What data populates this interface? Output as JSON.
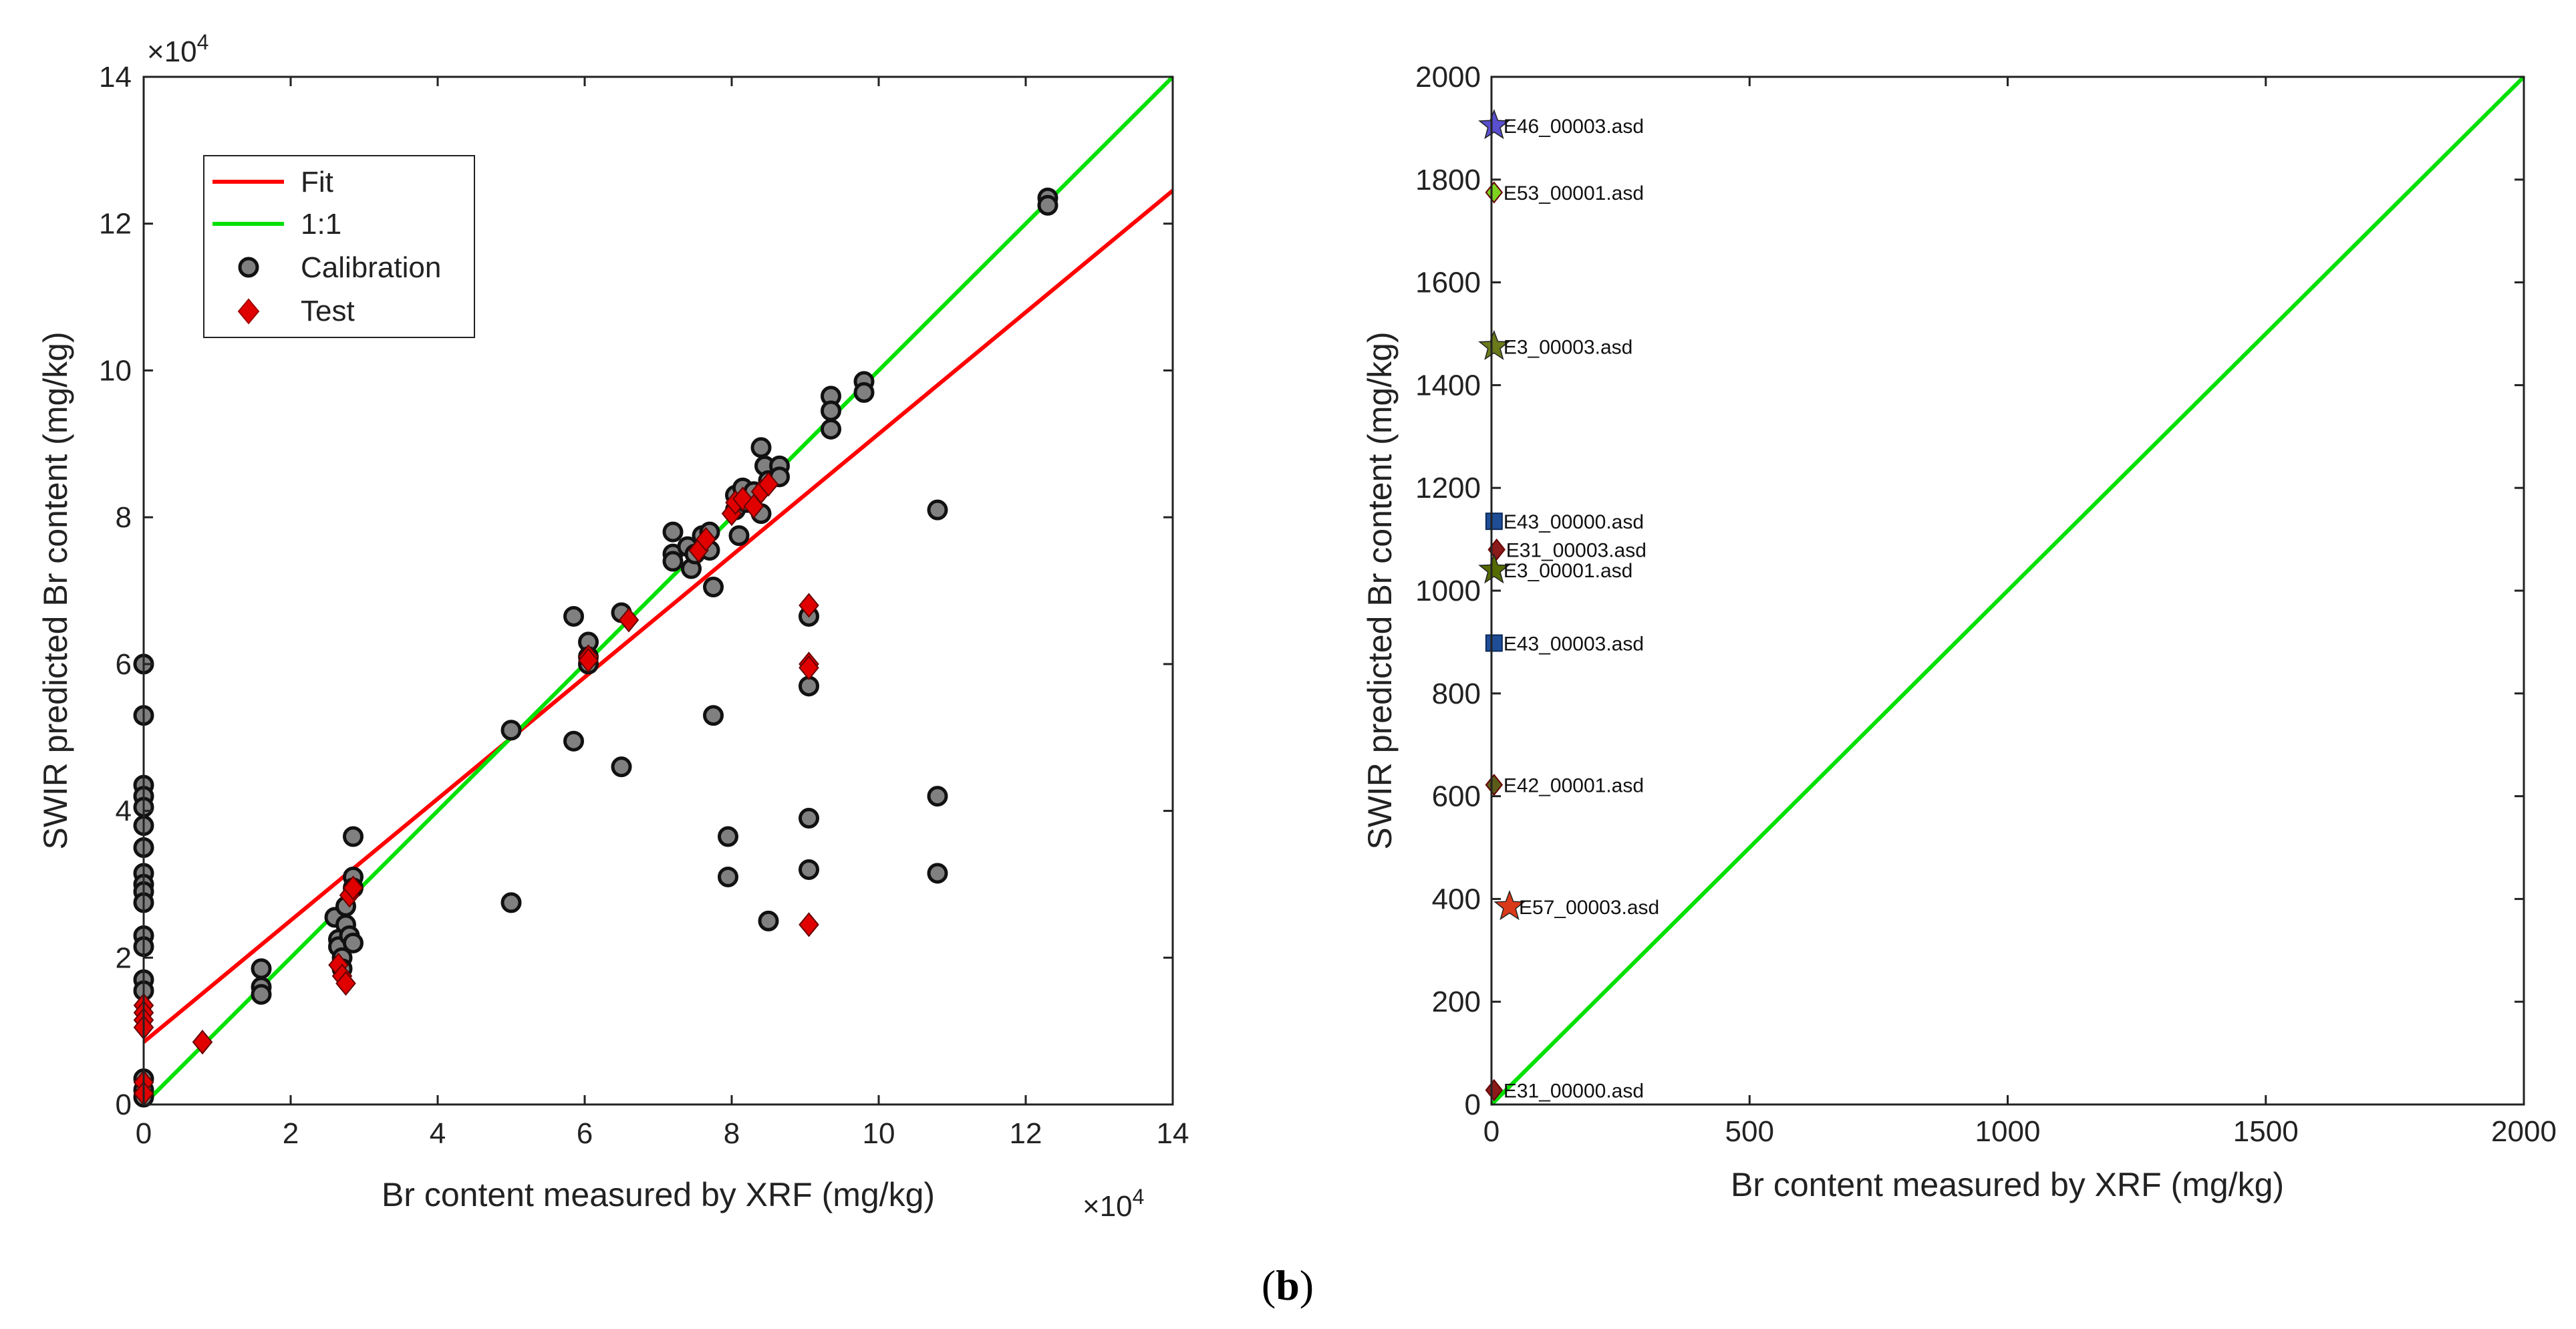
{
  "caption": {
    "open": "(",
    "letter": "b",
    "close": ")"
  },
  "chart_data": [
    {
      "type": "scatter",
      "xlabel": "Br content measured by XRF (mg/kg)",
      "ylabel": "SWIR predicted Br content (mg/kg)",
      "x_ticks": [
        "0",
        "2",
        "4",
        "6",
        "8",
        "10",
        "12",
        "14"
      ],
      "y_ticks": [
        "0",
        "2",
        "4",
        "6",
        "8",
        "10",
        "12",
        "14"
      ],
      "x_multiplier": "×10",
      "y_multiplier": "×10",
      "multiplier_exponent": "4",
      "xlim": [
        0,
        14
      ],
      "ylim": [
        0,
        14
      ],
      "legend": {
        "position": "top-left",
        "entries": [
          {
            "label": "Fit",
            "color": "#ff0000",
            "kind": "line"
          },
          {
            "label": "1:1",
            "color": "#00e000",
            "kind": "line"
          },
          {
            "label": "Calibration",
            "color": "#808080",
            "kind": "circle"
          },
          {
            "label": "Test",
            "color": "#e00000",
            "kind": "diamond"
          }
        ]
      },
      "lines": [
        {
          "name": "Fit",
          "color": "#ff0000",
          "x": [
            0,
            14
          ],
          "y": [
            0.85,
            12.45
          ]
        },
        {
          "name": "1:1",
          "color": "#00e000",
          "x": [
            0,
            14
          ],
          "y": [
            0,
            14
          ]
        }
      ],
      "series": [
        {
          "name": "Calibration",
          "marker": "circle",
          "color": "#808080",
          "points": [
            [
              0,
              6.0
            ],
            [
              0,
              5.3
            ],
            [
              0,
              4.35
            ],
            [
              0,
              4.2
            ],
            [
              0,
              4.05
            ],
            [
              0,
              3.8
            ],
            [
              0,
              3.5
            ],
            [
              0,
              3.15
            ],
            [
              0,
              3.0
            ],
            [
              0,
              2.9
            ],
            [
              0,
              2.75
            ],
            [
              0,
              2.3
            ],
            [
              0,
              2.15
            ],
            [
              0,
              1.7
            ],
            [
              0,
              1.55
            ],
            [
              0,
              0.35
            ],
            [
              0,
              0.2
            ],
            [
              0,
              0.1
            ],
            [
              1.6,
              1.85
            ],
            [
              1.6,
              1.6
            ],
            [
              1.6,
              1.5
            ],
            [
              2.6,
              2.55
            ],
            [
              2.65,
              2.25
            ],
            [
              2.65,
              2.15
            ],
            [
              2.7,
              2.0
            ],
            [
              2.7,
              1.85
            ],
            [
              2.75,
              2.7
            ],
            [
              2.75,
              2.45
            ],
            [
              2.8,
              2.3
            ],
            [
              2.85,
              3.65
            ],
            [
              2.85,
              3.1
            ],
            [
              2.85,
              2.95
            ],
            [
              2.85,
              2.2
            ],
            [
              5.0,
              5.1
            ],
            [
              5.0,
              2.75
            ],
            [
              5.85,
              6.65
            ],
            [
              5.85,
              4.95
            ],
            [
              6.05,
              6.3
            ],
            [
              6.05,
              6.1
            ],
            [
              6.05,
              6.0
            ],
            [
              6.5,
              6.7
            ],
            [
              6.5,
              4.6
            ],
            [
              7.2,
              7.8
            ],
            [
              7.2,
              7.5
            ],
            [
              7.2,
              7.4
            ],
            [
              7.4,
              7.6
            ],
            [
              7.45,
              7.3
            ],
            [
              7.5,
              7.5
            ],
            [
              7.6,
              7.75
            ],
            [
              7.7,
              7.8
            ],
            [
              7.7,
              7.55
            ],
            [
              7.75,
              7.05
            ],
            [
              7.75,
              5.3
            ],
            [
              7.95,
              3.65
            ],
            [
              7.95,
              3.1
            ],
            [
              8.05,
              8.3
            ],
            [
              8.05,
              8.1
            ],
            [
              8.1,
              7.75
            ],
            [
              8.15,
              8.4
            ],
            [
              8.2,
              8.2
            ],
            [
              8.3,
              8.35
            ],
            [
              8.4,
              8.95
            ],
            [
              8.4,
              8.05
            ],
            [
              8.45,
              8.7
            ],
            [
              8.5,
              8.5
            ],
            [
              8.5,
              2.5
            ],
            [
              8.65,
              8.7
            ],
            [
              8.65,
              8.55
            ],
            [
              9.05,
              6.65
            ],
            [
              9.05,
              5.7
            ],
            [
              9.05,
              3.9
            ],
            [
              9.05,
              3.2
            ],
            [
              9.35,
              9.65
            ],
            [
              9.35,
              9.45
            ],
            [
              9.35,
              9.2
            ],
            [
              9.8,
              9.85
            ],
            [
              9.8,
              9.7
            ],
            [
              10.8,
              8.1
            ],
            [
              10.8,
              4.2
            ],
            [
              10.8,
              3.15
            ],
            [
              12.3,
              12.35
            ],
            [
              12.3,
              12.25
            ]
          ]
        },
        {
          "name": "Test",
          "marker": "diamond",
          "color": "#e00000",
          "points": [
            [
              0,
              1.35
            ],
            [
              0,
              1.25
            ],
            [
              0,
              1.15
            ],
            [
              0,
              1.05
            ],
            [
              0,
              0.3
            ],
            [
              0,
              0.15
            ],
            [
              0.8,
              0.85
            ],
            [
              2.65,
              1.9
            ],
            [
              2.7,
              1.75
            ],
            [
              2.75,
              1.65
            ],
            [
              2.8,
              2.85
            ],
            [
              2.85,
              2.95
            ],
            [
              6.05,
              6.1
            ],
            [
              6.05,
              6.05
            ],
            [
              6.6,
              6.6
            ],
            [
              7.55,
              7.55
            ],
            [
              7.65,
              7.7
            ],
            [
              8.0,
              8.05
            ],
            [
              8.05,
              8.2
            ],
            [
              8.15,
              8.25
            ],
            [
              8.3,
              8.15
            ],
            [
              8.4,
              8.35
            ],
            [
              8.5,
              8.45
            ],
            [
              9.05,
              6.8
            ],
            [
              9.05,
              6.0
            ],
            [
              9.05,
              5.95
            ],
            [
              9.05,
              2.45
            ]
          ]
        }
      ]
    },
    {
      "type": "scatter",
      "xlabel": "Br content measured by XRF (mg/kg)",
      "ylabel": "SWIR predicted Br content (mg/kg)",
      "x_ticks": [
        "0",
        "500",
        "1000",
        "1500",
        "2000"
      ],
      "y_ticks": [
        "0",
        "200",
        "400",
        "600",
        "800",
        "1000",
        "1200",
        "1400",
        "1600",
        "1800",
        "2000"
      ],
      "xlim": [
        0,
        2000
      ],
      "ylim": [
        0,
        2000
      ],
      "lines": [
        {
          "name": "1:1",
          "color": "#00e000",
          "x": [
            0,
            2000
          ],
          "y": [
            0,
            2000
          ]
        }
      ],
      "points": [
        {
          "label": "E46_00003.asd",
          "x": 5,
          "y": 1905,
          "marker": "star",
          "color": "#5a4fcf"
        },
        {
          "label": "E53_00001.asd",
          "x": 5,
          "y": 1775,
          "marker": "diamond",
          "color": "#7ed321"
        },
        {
          "label": "E3_00003.asd",
          "x": 5,
          "y": 1475,
          "marker": "star",
          "color": "#6b7a1a"
        },
        {
          "label": "E43_00000.asd",
          "x": 5,
          "y": 1135,
          "marker": "square",
          "color": "#1f4e96"
        },
        {
          "label": "E31_00003.asd",
          "x": 10,
          "y": 1080,
          "marker": "diamond",
          "color": "#8b1a1a"
        },
        {
          "label": "E3_00001.asd",
          "x": 5,
          "y": 1040,
          "marker": "star",
          "color": "#556b00"
        },
        {
          "label": "E43_00003.asd",
          "x": 5,
          "y": 898,
          "marker": "square",
          "color": "#1f4e96"
        },
        {
          "label": "E42_00001.asd",
          "x": 5,
          "y": 622,
          "marker": "diamond",
          "color": "#5c5c1a"
        },
        {
          "label": "E57_00003.asd",
          "x": 35,
          "y": 385,
          "marker": "star",
          "color": "#d93a1a"
        },
        {
          "label": "E31_00000.asd",
          "x": 5,
          "y": 28,
          "marker": "diamond",
          "color": "#8b1a1a"
        }
      ]
    }
  ]
}
